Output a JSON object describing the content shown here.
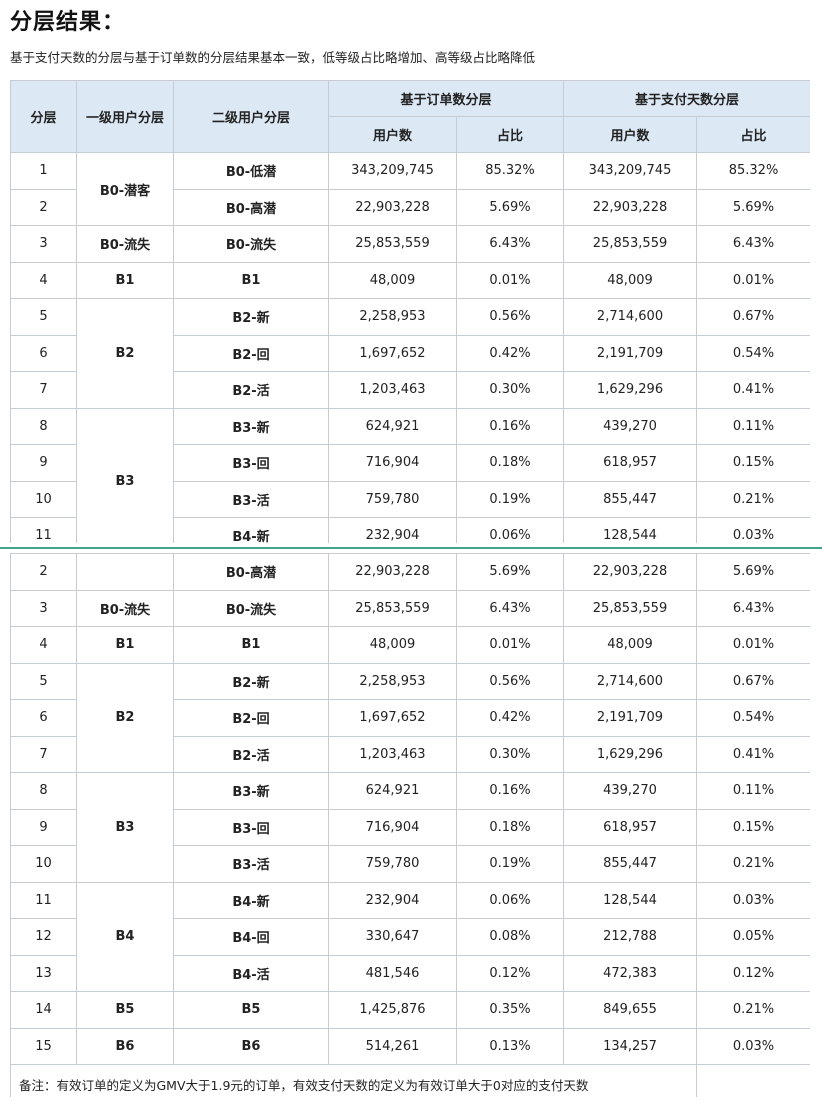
{
  "title": "分层结果：",
  "subtitle": "基于支付天数的分层与基于订单数的分层结果基本一致，低等级占比略增加、高等级占比略降低",
  "header": {
    "col_tier": "分层",
    "col_level1": "一级用户分层",
    "col_level2": "二级用户分层",
    "group_orders": "基于订单数分层",
    "group_days": "基于支付天数分层",
    "users": "用户数",
    "share": "占比"
  },
  "note": "备注：有效订单的定义为GMV大于1.9元的订单，有效支付天数的定义为有效订单大于0对应的支付天数",
  "top_table": {
    "level1": [
      "B0-潜客",
      "B0-流失",
      "B1",
      "B2",
      "B3"
    ],
    "rows": [
      {
        "tier": "1",
        "level2": "B0-低潜",
        "order_users": "343,209,745",
        "order_share": "85.32%",
        "day_users": "343,209,745",
        "day_share": "85.32%"
      },
      {
        "tier": "2",
        "level2": "B0-高潜",
        "order_users": "22,903,228",
        "order_share": "5.69%",
        "day_users": "22,903,228",
        "day_share": "5.69%"
      },
      {
        "tier": "3",
        "level2": "B0-流失",
        "order_users": "25,853,559",
        "order_share": "6.43%",
        "day_users": "25,853,559",
        "day_share": "6.43%"
      },
      {
        "tier": "4",
        "level2": "B1",
        "order_users": "48,009",
        "order_share": "0.01%",
        "day_users": "48,009",
        "day_share": "0.01%"
      },
      {
        "tier": "5",
        "level2": "B2-新",
        "order_users": "2,258,953",
        "order_share": "0.56%",
        "day_users": "2,714,600",
        "day_share": "0.67%"
      },
      {
        "tier": "6",
        "level2": "B2-回",
        "order_users": "1,697,652",
        "order_share": "0.42%",
        "day_users": "2,191,709",
        "day_share": "0.54%"
      },
      {
        "tier": "7",
        "level2": "B2-活",
        "order_users": "1,203,463",
        "order_share": "0.30%",
        "day_users": "1,629,296",
        "day_share": "0.41%"
      },
      {
        "tier": "8",
        "level2": "B3-新",
        "order_users": "624,921",
        "order_share": "0.16%",
        "day_users": "439,270",
        "day_share": "0.11%"
      },
      {
        "tier": "9",
        "level2": "B3-回",
        "order_users": "716,904",
        "order_share": "0.18%",
        "day_users": "618,957",
        "day_share": "0.15%"
      },
      {
        "tier": "10",
        "level2": "B3-活",
        "order_users": "759,780",
        "order_share": "0.19%",
        "day_users": "855,447",
        "day_share": "0.21%"
      },
      {
        "tier": "11",
        "level2": "B4-新",
        "order_users": "232,904",
        "order_share": "0.06%",
        "day_users": "128,544",
        "day_share": "0.03%"
      }
    ]
  },
  "bottom_table": {
    "level1": [
      "B0-流失",
      "B1",
      "B2",
      "B3",
      "B4",
      "B5",
      "B6"
    ],
    "rows": [
      {
        "tier": "2",
        "level2": "B0-高潜",
        "order_users": "22,903,228",
        "order_share": "5.69%",
        "day_users": "22,903,228",
        "day_share": "5.69%"
      },
      {
        "tier": "3",
        "level2": "B0-流失",
        "order_users": "25,853,559",
        "order_share": "6.43%",
        "day_users": "25,853,559",
        "day_share": "6.43%"
      },
      {
        "tier": "4",
        "level2": "B1",
        "order_users": "48,009",
        "order_share": "0.01%",
        "day_users": "48,009",
        "day_share": "0.01%"
      },
      {
        "tier": "5",
        "level2": "B2-新",
        "order_users": "2,258,953",
        "order_share": "0.56%",
        "day_users": "2,714,600",
        "day_share": "0.67%"
      },
      {
        "tier": "6",
        "level2": "B2-回",
        "order_users": "1,697,652",
        "order_share": "0.42%",
        "day_users": "2,191,709",
        "day_share": "0.54%"
      },
      {
        "tier": "7",
        "level2": "B2-活",
        "order_users": "1,203,463",
        "order_share": "0.30%",
        "day_users": "1,629,296",
        "day_share": "0.41%"
      },
      {
        "tier": "8",
        "level2": "B3-新",
        "order_users": "624,921",
        "order_share": "0.16%",
        "day_users": "439,270",
        "day_share": "0.11%"
      },
      {
        "tier": "9",
        "level2": "B3-回",
        "order_users": "716,904",
        "order_share": "0.18%",
        "day_users": "618,957",
        "day_share": "0.15%"
      },
      {
        "tier": "10",
        "level2": "B3-活",
        "order_users": "759,780",
        "order_share": "0.19%",
        "day_users": "855,447",
        "day_share": "0.21%"
      },
      {
        "tier": "11",
        "level2": "B4-新",
        "order_users": "232,904",
        "order_share": "0.06%",
        "day_users": "128,544",
        "day_share": "0.03%"
      },
      {
        "tier": "12",
        "level2": "B4-回",
        "order_users": "330,647",
        "order_share": "0.08%",
        "day_users": "212,788",
        "day_share": "0.05%"
      },
      {
        "tier": "13",
        "level2": "B4-活",
        "order_users": "481,546",
        "order_share": "0.12%",
        "day_users": "472,383",
        "day_share": "0.12%"
      },
      {
        "tier": "14",
        "level2": "B5",
        "order_users": "1,425,876",
        "order_share": "0.35%",
        "day_users": "849,655",
        "day_share": "0.21%"
      },
      {
        "tier": "15",
        "level2": "B6",
        "order_users": "514,261",
        "order_share": "0.13%",
        "day_users": "134,257",
        "day_share": "0.03%"
      }
    ]
  }
}
